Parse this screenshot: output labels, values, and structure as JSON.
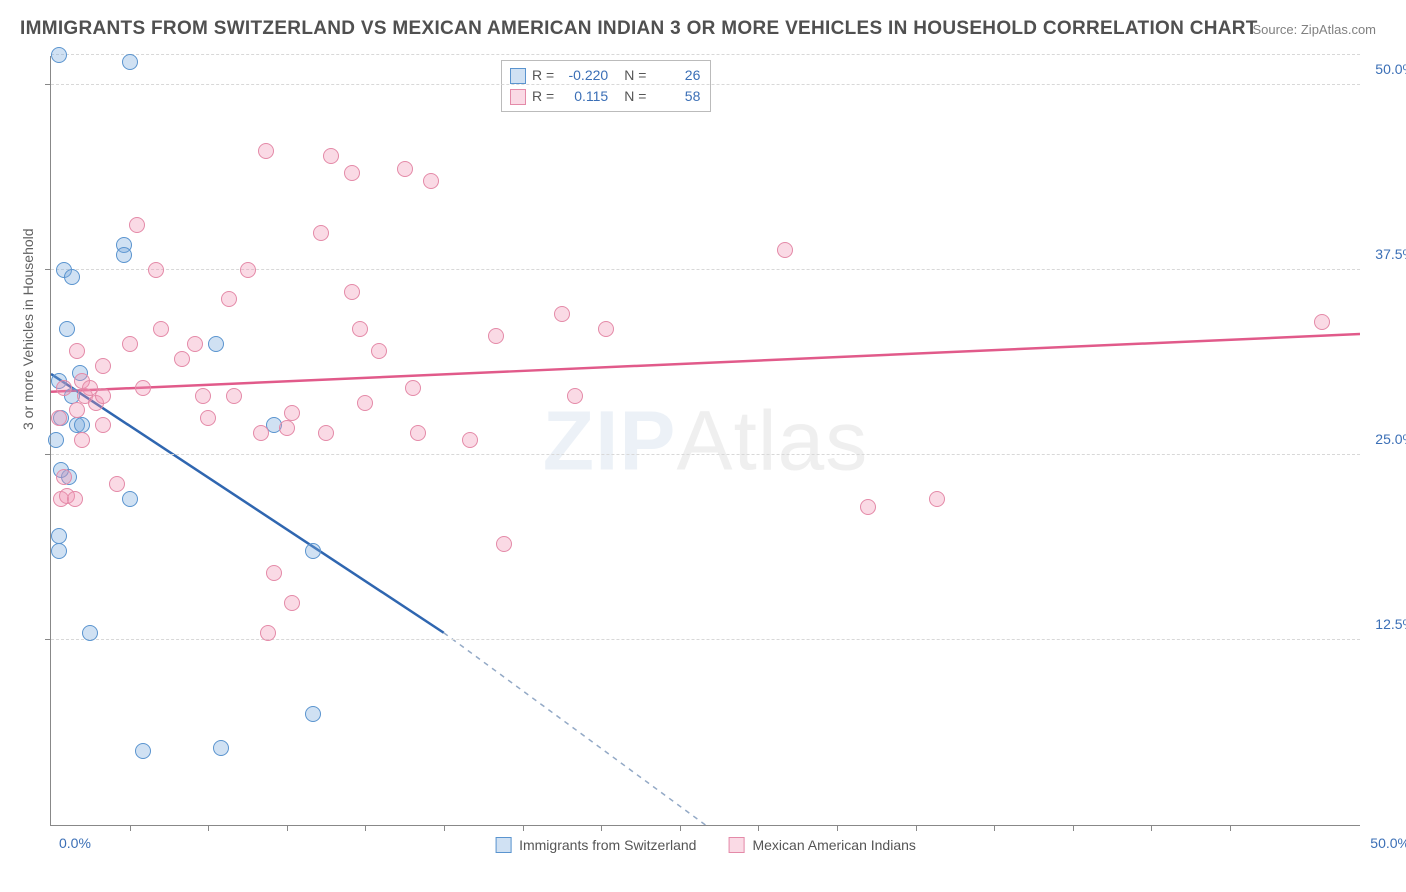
{
  "title": "IMMIGRANTS FROM SWITZERLAND VS MEXICAN AMERICAN INDIAN 3 OR MORE VEHICLES IN HOUSEHOLD CORRELATION CHART",
  "source": "Source: ZipAtlas.com",
  "watermark_bold": "ZIP",
  "watermark_thin": "Atlas",
  "chart": {
    "type": "scatter",
    "background": "#ffffff",
    "grid_color": "#d8d8d8",
    "axis_color": "#888888",
    "tick_color": "#3b6fb6",
    "ylabel": "3 or more Vehicles in Household",
    "xlim": [
      0,
      50
    ],
    "ylim": [
      0,
      52
    ],
    "xticks": [
      {
        "v": 0,
        "label": "0.0%"
      },
      {
        "v": 50,
        "label": "50.0%"
      }
    ],
    "xtick_marks": [
      3,
      6,
      9,
      12,
      15,
      18,
      21,
      24,
      27,
      30,
      33,
      36,
      39,
      42,
      45
    ],
    "yticks": [
      {
        "v": 12.5,
        "label": "12.5%"
      },
      {
        "v": 25.0,
        "label": "25.0%"
      },
      {
        "v": 37.5,
        "label": "37.5%"
      },
      {
        "v": 50.0,
        "label": "50.0%"
      }
    ],
    "grid_y": [
      12.5,
      25.0,
      37.5,
      50.0,
      52.0
    ],
    "marker_radius": 8,
    "marker_border": 1.2,
    "series": [
      {
        "name": "Immigrants from Switzerland",
        "short": "swiss",
        "fill": "rgba(120,170,220,0.35)",
        "stroke": "#5a94cf",
        "R": "-0.220",
        "N": "26",
        "trend": {
          "x1": 0,
          "y1": 30.5,
          "x2": 15,
          "y2": 13.0,
          "ext_x2": 25,
          "ext_y2": 0,
          "color": "#2f66b0",
          "dash_color": "#93a9c6"
        },
        "points": [
          [
            0.3,
            52.0
          ],
          [
            0.5,
            37.5
          ],
          [
            0.8,
            37.0
          ],
          [
            0.6,
            33.5
          ],
          [
            3.0,
            51.5
          ],
          [
            0.4,
            27.5
          ],
          [
            1.0,
            27.0
          ],
          [
            0.3,
            19.5
          ],
          [
            0.3,
            18.5
          ],
          [
            0.7,
            23.5
          ],
          [
            1.2,
            27.0
          ],
          [
            2.8,
            39.2
          ],
          [
            0.4,
            24.0
          ],
          [
            0.3,
            30.0
          ],
          [
            1.1,
            30.5
          ],
          [
            0.8,
            29.0
          ],
          [
            0.2,
            26.0
          ],
          [
            3.0,
            22.0
          ],
          [
            1.5,
            13.0
          ],
          [
            2.8,
            38.5
          ],
          [
            6.3,
            32.5
          ],
          [
            3.5,
            5.0
          ],
          [
            6.5,
            5.2
          ],
          [
            10.0,
            7.5
          ],
          [
            10.0,
            18.5
          ],
          [
            8.5,
            27.0
          ]
        ]
      },
      {
        "name": "Mexican American Indians",
        "short": "mexican",
        "fill": "rgba(240,150,180,0.35)",
        "stroke": "#e48aa8",
        "R": "0.115",
        "N": "58",
        "trend": {
          "x1": 0,
          "y1": 29.3,
          "x2": 50,
          "y2": 33.2,
          "color": "#e15a8a"
        },
        "points": [
          [
            0.4,
            22.0
          ],
          [
            0.5,
            23.5
          ],
          [
            0.6,
            22.2
          ],
          [
            0.9,
            22.0
          ],
          [
            0.3,
            27.5
          ],
          [
            1.0,
            28.0
          ],
          [
            1.3,
            29.0
          ],
          [
            0.5,
            29.5
          ],
          [
            1.2,
            26.0
          ],
          [
            1.2,
            30.0
          ],
          [
            1.0,
            32.0
          ],
          [
            1.5,
            29.5
          ],
          [
            1.7,
            28.5
          ],
          [
            2.0,
            27.0
          ],
          [
            2.5,
            23.0
          ],
          [
            2.0,
            29.0
          ],
          [
            2.0,
            31.0
          ],
          [
            3.3,
            40.5
          ],
          [
            4.0,
            37.5
          ],
          [
            3.5,
            29.5
          ],
          [
            3.0,
            32.5
          ],
          [
            4.2,
            33.5
          ],
          [
            5.0,
            31.5
          ],
          [
            5.5,
            32.5
          ],
          [
            5.8,
            29.0
          ],
          [
            6.0,
            27.5
          ],
          [
            6.8,
            35.5
          ],
          [
            7.0,
            29.0
          ],
          [
            7.5,
            37.5
          ],
          [
            8.2,
            45.5
          ],
          [
            8.0,
            26.5
          ],
          [
            8.3,
            13.0
          ],
          [
            8.5,
            17.0
          ],
          [
            9.0,
            26.8
          ],
          [
            9.2,
            27.8
          ],
          [
            9.2,
            15.0
          ],
          [
            10.3,
            40.0
          ],
          [
            10.7,
            45.2
          ],
          [
            11.5,
            36.0
          ],
          [
            11.5,
            44.0
          ],
          [
            10.5,
            26.5
          ],
          [
            11.8,
            33.5
          ],
          [
            12.5,
            32.0
          ],
          [
            13.5,
            44.3
          ],
          [
            14.5,
            43.5
          ],
          [
            12.0,
            28.5
          ],
          [
            14.0,
            26.5
          ],
          [
            13.8,
            29.5
          ],
          [
            16.0,
            26.0
          ],
          [
            17.0,
            33.0
          ],
          [
            17.3,
            19.0
          ],
          [
            19.5,
            34.5
          ],
          [
            20.0,
            29.0
          ],
          [
            21.2,
            33.5
          ],
          [
            28.0,
            38.8
          ],
          [
            31.2,
            21.5
          ],
          [
            33.8,
            22.0
          ],
          [
            48.5,
            34.0
          ]
        ]
      }
    ],
    "legend_bottom": [
      {
        "label": "Immigrants from Switzerland",
        "fill": "rgba(120,170,220,0.35)",
        "stroke": "#5a94cf"
      },
      {
        "label": "Mexican American Indians",
        "fill": "rgba(240,150,180,0.35)",
        "stroke": "#e48aa8"
      }
    ]
  }
}
